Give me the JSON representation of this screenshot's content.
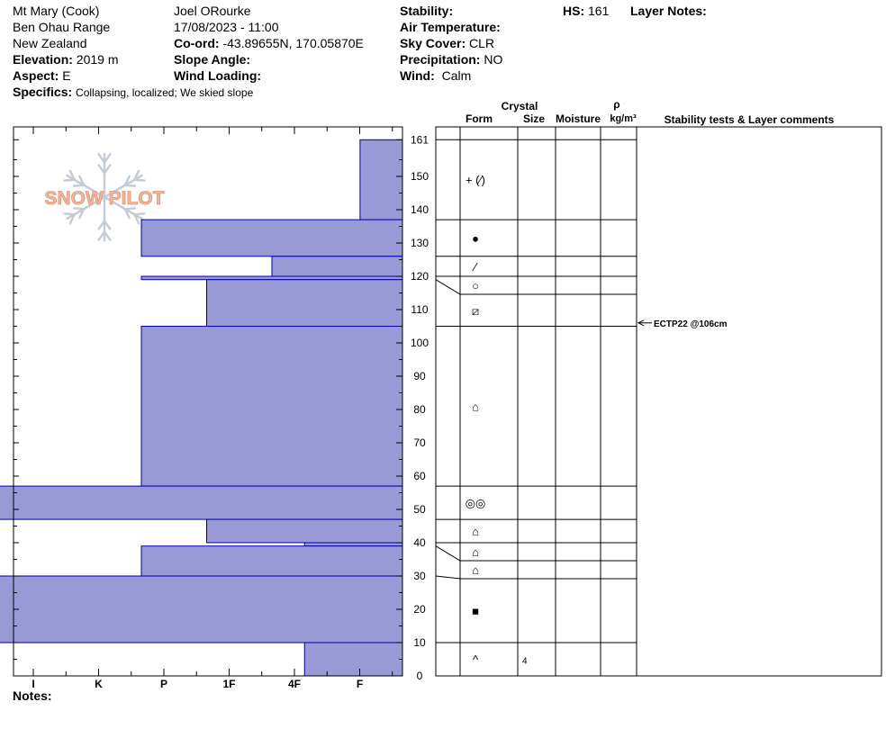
{
  "header": {
    "location": "Mt Mary (Cook)",
    "range": "Ben Ohau Range",
    "country": "New Zealand",
    "elevation_label": "Elevation:",
    "elevation_value": "2019 m",
    "aspect_label": "Aspect:",
    "aspect_value": "E",
    "specifics_label": "Specifics:",
    "specifics_value": "Collapsing, localized;  We skied slope",
    "observer": "Joel ORourke",
    "datetime": "17/08/2023 - 11:00",
    "coord_label": "Co-ord:",
    "coord_value": "-43.89655N, 170.05870E",
    "slope_label": "Slope Angle:",
    "wind_loading_label": "Wind Loading:",
    "stability_label": "Stability:",
    "air_temp_label": "Air Temperature:",
    "sky_label": "Sky Cover:",
    "sky_value": "CLR",
    "precip_label": "Precipitation:",
    "precip_value": "NO",
    "wind_label": "Wind:",
    "wind_value": "Calm",
    "hs_label": "HS:",
    "hs_value": "161",
    "layer_notes_label": "Layer Notes:"
  },
  "columns": {
    "crystal": "Crystal",
    "form": "Form",
    "size": "Size",
    "moisture": "Moisture",
    "rho": "ρ",
    "density_unit": "kg/m³",
    "stability": "Stability tests & Layer comments"
  },
  "notes_label": "Notes:",
  "logo_text": "SNOW PILOT",
  "colors": {
    "bar_fill": "#9999d6",
    "bar_stroke": "#0000aa",
    "logo": "#f2b79a"
  },
  "chart_data": {
    "type": "bar",
    "orientation": "horizontal",
    "title": "",
    "xlabel": "",
    "ylabel": "",
    "hardness_ticks": [
      "I",
      "K",
      "P",
      "1F",
      "4F",
      "F"
    ],
    "y_ticks": [
      0,
      10,
      20,
      30,
      40,
      50,
      60,
      70,
      80,
      90,
      100,
      110,
      120,
      130,
      140,
      150,
      161
    ],
    "ylim": [
      0,
      161
    ],
    "layers": [
      {
        "top": 161,
        "bottom": 137,
        "hardness": 0.65,
        "form": "+ (⁄)",
        "size": ""
      },
      {
        "top": 137,
        "bottom": 126,
        "hardness": 4.0,
        "form": "●",
        "size": ""
      },
      {
        "top": 126,
        "bottom": 120,
        "hardness": 2.0,
        "form": "⁄",
        "size": ""
      },
      {
        "top": 120,
        "bottom": 119,
        "hardness": 4.0,
        "form": "○",
        "size": ""
      },
      {
        "top": 119,
        "bottom": 105,
        "hardness": 3.0,
        "form": "⧄",
        "size": ""
      },
      {
        "top": 105,
        "bottom": 57,
        "hardness": 4.0,
        "form": "⌂",
        "size": ""
      },
      {
        "top": 57,
        "bottom": 47,
        "hardness": 6.3,
        "form": "◎◎",
        "size": ""
      },
      {
        "top": 47,
        "bottom": 40,
        "hardness": 3.0,
        "form": "⌂",
        "size": ""
      },
      {
        "top": 40,
        "bottom": 39,
        "hardness": 1.5,
        "form": "⌂",
        "size": ""
      },
      {
        "top": 39,
        "bottom": 30,
        "hardness": 4.0,
        "form": "⌂",
        "size": ""
      },
      {
        "top": 30,
        "bottom": 10,
        "hardness": 7.0,
        "form": "■",
        "size": ""
      },
      {
        "top": 10,
        "bottom": 0,
        "hardness": 1.5,
        "form": "^",
        "size": "4"
      }
    ],
    "tests": [
      {
        "depth": 106,
        "label": "ECTP22 @106cm"
      }
    ]
  }
}
